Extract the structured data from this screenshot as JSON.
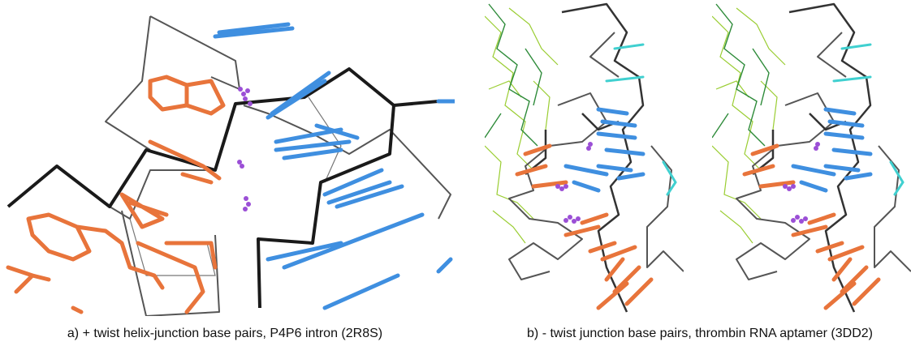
{
  "figure": {
    "panels": [
      {
        "caption": "a)  + twist helix-junction base pairs, P4P6 intron (2R8S)"
      },
      {
        "caption": "b)  - twist junction base pairs, thrombin RNA aptamer (3DD2)"
      }
    ]
  }
}
